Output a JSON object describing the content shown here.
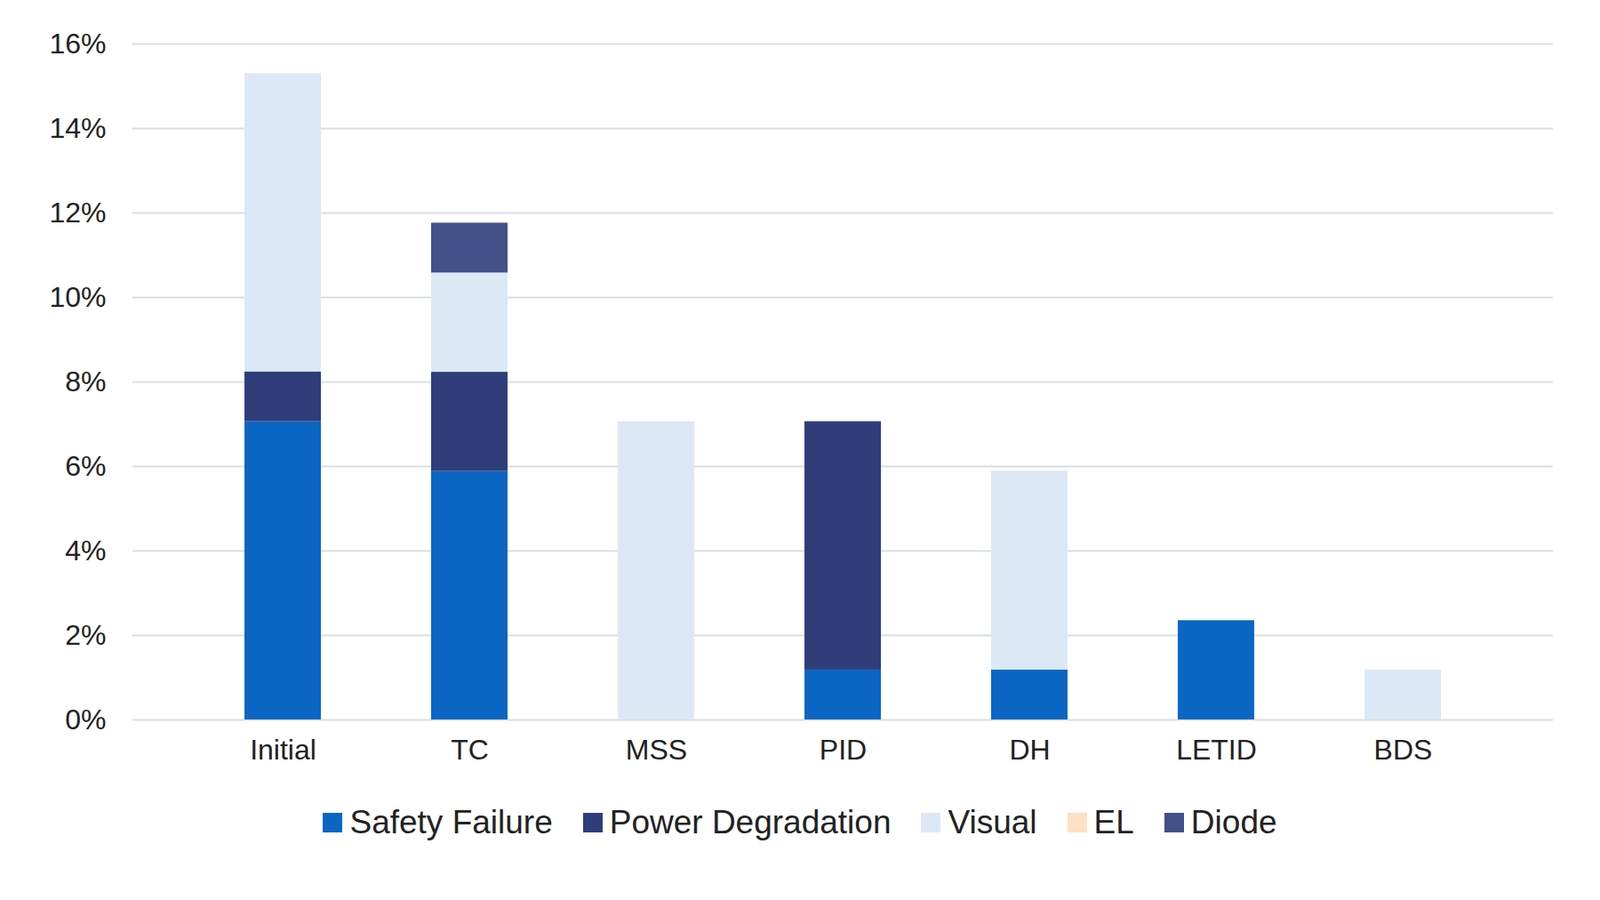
{
  "chart_data": {
    "type": "bar",
    "stacked": true,
    "grid": true,
    "legend": "bottom",
    "categories": [
      "Initial",
      "TC",
      "MSS",
      "PID",
      "DH",
      "LETID",
      "BDS"
    ],
    "ylim": [
      0,
      16
    ],
    "yticks": [
      {
        "value": 0,
        "label": "0%"
      },
      {
        "value": 2,
        "label": "2%"
      },
      {
        "value": 4,
        "label": "4%"
      },
      {
        "value": 6,
        "label": "6%"
      },
      {
        "value": 8,
        "label": "8%"
      },
      {
        "value": 10,
        "label": "10%"
      },
      {
        "value": 12,
        "label": "12%"
      },
      {
        "value": 14,
        "label": "14%"
      },
      {
        "value": 16,
        "label": "16%"
      }
    ],
    "series": [
      {
        "name": "Safety Failure",
        "color": "#0a66c2",
        "values": [
          7.06,
          5.88,
          0,
          1.18,
          1.18,
          2.35,
          0
        ]
      },
      {
        "name": "Power Degradation",
        "color": "#2f3e7a",
        "values": [
          1.18,
          2.35,
          0,
          5.88,
          0,
          0,
          0
        ]
      },
      {
        "name": "Visual",
        "color": "#dde8f6",
        "values": [
          7.06,
          2.35,
          7.06,
          0,
          4.71,
          0,
          1.18
        ]
      },
      {
        "name": "EL",
        "color": "#fde0c5",
        "values": [
          0,
          0,
          0,
          0,
          0,
          0,
          0
        ]
      },
      {
        "name": "Diode",
        "color": "#435089",
        "values": [
          0,
          1.18,
          0,
          0,
          0,
          0,
          0
        ]
      }
    ]
  }
}
